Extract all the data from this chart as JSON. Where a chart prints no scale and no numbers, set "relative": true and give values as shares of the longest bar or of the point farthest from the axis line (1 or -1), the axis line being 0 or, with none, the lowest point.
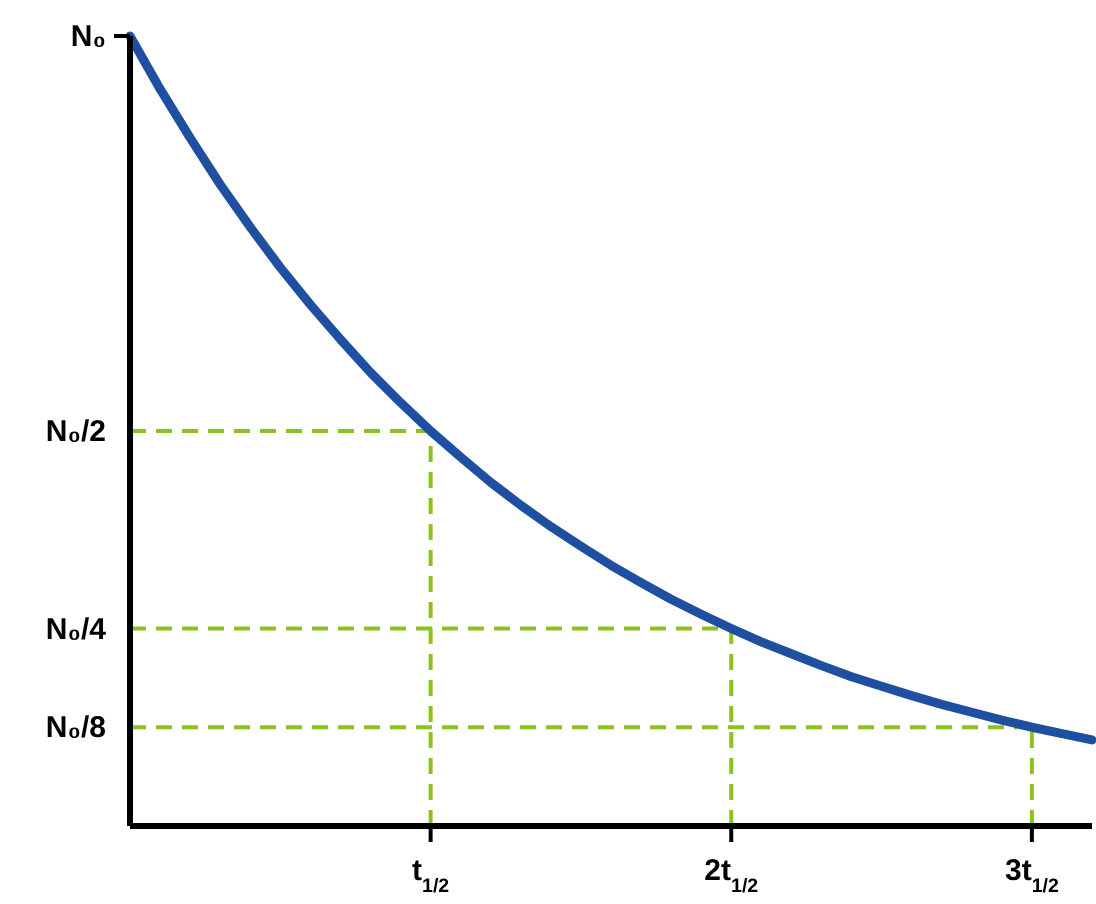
{
  "chart_data": {
    "type": "line",
    "relative": true,
    "categories": [
      null,
      null,
      null,
      null,
      null,
      null,
      null,
      null,
      null,
      null,
      "t$_{1/2}$",
      null,
      null,
      null,
      null,
      null,
      null,
      null,
      null,
      null,
      "2t$_{1/2}$",
      null,
      null,
      null,
      null,
      null,
      null,
      null,
      null,
      null,
      "3t$_{1/2}$",
      null,
      null
    ],
    "series": [
      {
        "color": "#1f4fa0",
        "values": [
          1,
          0.933,
          0.871,
          0.812,
          0.758,
          0.707,
          0.66,
          0.616,
          0.574,
          0.536,
          0.5,
          0.467,
          0.435,
          0.406,
          0.379,
          0.354,
          0.33,
          0.308,
          0.287,
          0.268,
          0.25,
          0.233,
          0.218,
          0.203,
          0.189,
          0.177,
          0.165,
          0.154,
          0.144,
          0.134,
          0.125,
          0.117,
          0.109
        ]
      }
    ],
    "annotations": [
      "N₀"
    ],
    "ref_lines": [
      {
        "axis": "y",
        "value": 0.5,
        "label": "N₀/2",
        "color": "#8cc21f",
        "line_style": "dashed"
      },
      {
        "axis": "y",
        "value": 0.25,
        "label": "N₀/4",
        "color": "#8cc21f",
        "line_style": "dashed"
      },
      {
        "axis": "y",
        "value": 0.125,
        "label": "N₀/8",
        "color": "#8cc21f",
        "line_style": "dashed"
      },
      {
        "axis": "x",
        "value": "t$_{1/2}$",
        "color": "#8cc21f",
        "line_style": "dashed"
      },
      {
        "axis": "x",
        "value": "2t$_{1/2}$",
        "color": "#8cc21f",
        "line_style": "dashed"
      },
      {
        "axis": "x",
        "value": "3t$_{1/2}$",
        "color": "#8cc21f",
        "line_style": "dashed"
      }
    ],
    "grid": false,
    "marker": "none",
    "line_style": "solid"
  }
}
